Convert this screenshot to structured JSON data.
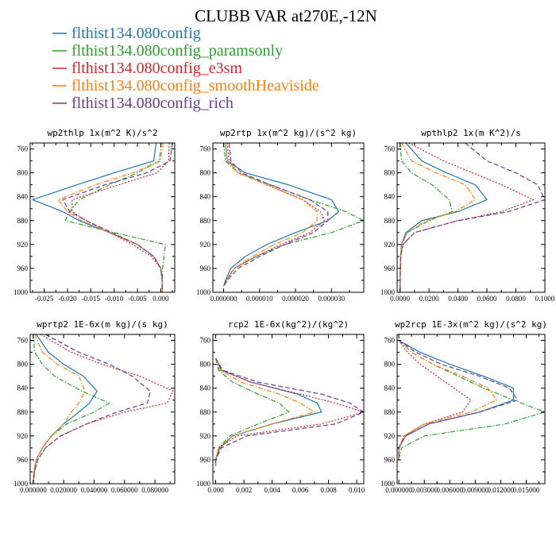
{
  "figure": {
    "title": "CLUBB VAR at270E,-12N"
  },
  "colors": {
    "flthist134.080config": "#1f77b4",
    "flthist134.080config_paramsonly": "#2ca02c",
    "flthist134.080config_e3sm": "#d62728",
    "flthist134.080config_smoothHeaviside": "#ff7f0e",
    "flthist134.080config_rich": "#6a3d9a"
  },
  "legend": [
    {
      "name": "flthist134.080config",
      "color": "#1f77b4",
      "dash": "solid"
    },
    {
      "name": "flthist134.080config_paramsonly",
      "color": "#2ca02c",
      "dash": "dashdot"
    },
    {
      "name": "flthist134.080config_e3sm",
      "color": "#d62728",
      "dash": "dotted"
    },
    {
      "name": "flthist134.080config_smoothHeaviside",
      "color": "#ff7f0e",
      "dash": "dashdot"
    },
    {
      "name": "flthist134.080config_rich",
      "color": "#6a3d9a",
      "dash": "dashed"
    }
  ],
  "chart_data": [
    {
      "type": "line",
      "title": "wp2thlp  1x(m^2 K)/s^2",
      "xlim": [
        -0.028,
        0.003
      ],
      "ylim": [
        1000,
        750
      ],
      "xticks": [
        -0.025,
        -0.02,
        -0.015,
        -0.01,
        -0.005,
        0.0
      ],
      "xtick_labels": [
        "-0.025",
        "-0.020",
        "-0.015",
        "-0.010",
        "-0.005",
        "0.000"
      ],
      "yticks": [
        760,
        800,
        840,
        880,
        920,
        960,
        1000
      ],
      "y": [
        750,
        780,
        800,
        820,
        845,
        865,
        880,
        900,
        920,
        940,
        960,
        980,
        1000
      ],
      "series": [
        {
          "name": "flthist134.080config",
          "values": [
            -0.001,
            -0.0015,
            -0.01,
            -0.018,
            -0.0275,
            -0.021,
            -0.0175,
            -0.011,
            -0.005,
            -0.0015,
            0.0,
            0.0003,
            0.0003
          ]
        },
        {
          "name": "flthist134.080config_paramsonly",
          "values": [
            0.0001,
            -0.0003,
            -0.005,
            -0.011,
            -0.0175,
            -0.0195,
            -0.0205,
            -0.01,
            0.001,
            0.0007,
            0.0004,
            0.0003,
            0.0003
          ]
        },
        {
          "name": "flthist134.080config_e3sm",
          "values": [
            0.0018,
            0.0017,
            -0.0008,
            -0.009,
            -0.019,
            -0.019,
            -0.016,
            -0.011,
            -0.006,
            -0.002,
            0.0,
            0.0003,
            0.0003
          ]
        },
        {
          "name": "flthist134.080config_smoothHeaviside",
          "values": [
            0.0005,
            -0.0001,
            -0.006,
            -0.014,
            -0.022,
            -0.02,
            -0.017,
            -0.011,
            -0.005,
            -0.0015,
            0.0,
            0.0003,
            0.0003
          ]
        },
        {
          "name": "flthist134.080config_rich",
          "values": [
            0.0025,
            0.002,
            -0.003,
            -0.012,
            -0.021,
            -0.0195,
            -0.016,
            -0.0105,
            -0.005,
            -0.0015,
            0.0,
            0.0003,
            0.0003
          ]
        }
      ]
    },
    {
      "type": "line",
      "title": "wp2rtp  1x(m^2 kg)/(s^2 kg)",
      "xlim": [
        -3e-06,
        3.9e-05
      ],
      "ylim": [
        1000,
        750
      ],
      "xticks": [
        0.0,
        1e-05,
        2e-05,
        3e-05
      ],
      "xtick_labels": [
        "0.000000",
        "0.000010",
        "0.000020",
        "0.000030"
      ],
      "yticks": [
        760,
        800,
        840,
        880,
        920,
        960,
        1000
      ],
      "y": [
        750,
        780,
        800,
        820,
        845,
        865,
        880,
        900,
        920,
        940,
        960,
        980,
        990
      ],
      "series": [
        {
          "name": "flthist134.080config",
          "values": [
            5e-07,
            1e-06,
            6e-06,
            1.8e-05,
            3e-05,
            3.2e-05,
            2.9e-05,
            2e-05,
            1.2e-05,
            6e-06,
            2e-06,
            5e-07,
            0.0
          ]
        },
        {
          "name": "flthist134.080config_paramsonly",
          "values": [
            0.0,
            5e-07,
            4e-06,
            1.3e-05,
            2.4e-05,
            3.4e-05,
            3.9e-05,
            3e-05,
            1.7e-05,
            9e-06,
            3e-06,
            5e-07,
            0.0
          ]
        },
        {
          "name": "flthist134.080config_e3sm",
          "values": [
            1e-06,
            1.5e-06,
            4e-06,
            1.2e-05,
            2.2e-05,
            2.7e-05,
            2.8e-05,
            2.4e-05,
            1.6e-05,
            9e-06,
            3e-06,
            8e-07,
            0.0
          ]
        },
        {
          "name": "flthist134.080config_smoothHeaviside",
          "values": [
            5e-07,
            1e-06,
            4e-06,
            1.2e-05,
            2.2e-05,
            2.6e-05,
            2.6e-05,
            2.2e-05,
            1.4e-05,
            8e-06,
            3e-06,
            8e-07,
            0.0
          ]
        },
        {
          "name": "flthist134.080config_rich",
          "values": [
            1.5e-06,
            2e-06,
            5e-06,
            1.3e-05,
            2.4e-05,
            2.9e-05,
            2.9e-05,
            2.5e-05,
            1.7e-05,
            1e-05,
            4e-06,
            1e-06,
            0.0
          ]
        }
      ]
    },
    {
      "type": "line",
      "title": "wpthlp2  1x(m K^2)/s",
      "xlim": [
        -0.002,
        0.1
      ],
      "ylim": [
        1000,
        750
      ],
      "xticks": [
        0.0,
        0.02,
        0.04,
        0.06,
        0.08,
        0.1
      ],
      "xtick_labels": [
        "0.0000",
        "0.0200",
        "0.0400",
        "0.0600",
        "0.0800",
        "0.1000"
      ],
      "yticks": [
        760,
        800,
        840,
        880,
        920,
        960,
        1000
      ],
      "y": [
        750,
        780,
        800,
        820,
        845,
        865,
        880,
        900,
        920,
        940,
        960,
        980,
        1000
      ],
      "series": [
        {
          "name": "flthist134.080config",
          "values": [
            0.004,
            0.015,
            0.032,
            0.052,
            0.06,
            0.04,
            0.015,
            0.004,
            0.001,
            0.0005,
            0.0002,
            0.0001,
            0.0
          ]
        },
        {
          "name": "flthist134.080config_paramsonly",
          "values": [
            0.0,
            0.001,
            0.008,
            0.022,
            0.034,
            0.036,
            0.02,
            0.005,
            0.001,
            0.0005,
            0.0002,
            0.0001,
            0.0
          ]
        },
        {
          "name": "flthist134.080config_e3sm",
          "values": [
            0.006,
            0.03,
            0.05,
            0.07,
            0.092,
            0.07,
            0.04,
            0.01,
            0.002,
            0.0005,
            0.0002,
            0.0001,
            0.0
          ]
        },
        {
          "name": "flthist134.080config_smoothHeaviside",
          "values": [
            0.001,
            0.008,
            0.025,
            0.045,
            0.052,
            0.038,
            0.018,
            0.005,
            0.001,
            0.0005,
            0.0002,
            0.0001,
            0.0
          ]
        },
        {
          "name": "flthist134.080config_rich",
          "values": [
            0.045,
            0.06,
            0.08,
            0.095,
            0.1,
            0.075,
            0.04,
            0.01,
            0.002,
            0.0005,
            0.0002,
            0.0001,
            0.0
          ]
        }
      ]
    },
    {
      "type": "line",
      "title": "wprtp2  1E-6x(m kg)/(s kg)",
      "xlim": [
        -0.002,
        0.093
      ],
      "ylim": [
        1000,
        750
      ],
      "xticks": [
        0.0,
        0.02,
        0.04,
        0.06,
        0.08
      ],
      "xtick_labels": [
        "0.000000",
        "0.020000",
        "0.040000",
        "0.060000",
        "0.080000"
      ],
      "yticks": [
        760,
        800,
        840,
        880,
        920,
        960,
        1000
      ],
      "y": [
        750,
        780,
        800,
        820,
        845,
        865,
        880,
        900,
        920,
        940,
        960,
        980,
        1000
      ],
      "series": [
        {
          "name": "flthist134.080config",
          "values": [
            0.002,
            0.01,
            0.02,
            0.033,
            0.042,
            0.037,
            0.03,
            0.02,
            0.012,
            0.006,
            0.002,
            0.0005,
            0.0
          ]
        },
        {
          "name": "flthist134.080config_paramsonly",
          "values": [
            0.0,
            0.001,
            0.006,
            0.014,
            0.032,
            0.05,
            0.04,
            0.022,
            0.012,
            0.006,
            0.002,
            0.0005,
            0.0
          ]
        },
        {
          "name": "flthist134.080config_e3sm",
          "values": [
            0.005,
            0.025,
            0.045,
            0.07,
            0.092,
            0.088,
            0.06,
            0.035,
            0.018,
            0.008,
            0.003,
            0.0008,
            0.0
          ]
        },
        {
          "name": "flthist134.080config_smoothHeaviside",
          "values": [
            0.001,
            0.006,
            0.016,
            0.03,
            0.034,
            0.03,
            0.025,
            0.02,
            0.012,
            0.006,
            0.002,
            0.0005,
            0.0
          ]
        },
        {
          "name": "flthist134.080config_rich",
          "values": [
            0.008,
            0.03,
            0.05,
            0.065,
            0.077,
            0.075,
            0.055,
            0.035,
            0.018,
            0.008,
            0.003,
            0.0008,
            0.0
          ]
        }
      ]
    },
    {
      "type": "line",
      "title": "rcp2  1E-6x(kg^2)/(kg^2)",
      "xlim": [
        -0.0002,
        0.0105
      ],
      "ylim": [
        1000,
        750
      ],
      "xticks": [
        0.0,
        0.002,
        0.004,
        0.006,
        0.008,
        0.01
      ],
      "xtick_labels": [
        "0.000",
        "0.002",
        "0.004",
        "0.006",
        "0.008",
        "0.010"
      ],
      "yticks": [
        760,
        800,
        840,
        880,
        920,
        960,
        1000
      ],
      "y": [
        790,
        810,
        830,
        850,
        865,
        880,
        900,
        920,
        940,
        960,
        970
      ],
      "series": [
        {
          "name": "flthist134.080config",
          "values": [
            0.0,
            0.0004,
            0.0025,
            0.0058,
            0.0072,
            0.0075,
            0.004,
            0.0012,
            0.0003,
            0.0,
            0.0
          ]
        },
        {
          "name": "flthist134.080config_paramsonly",
          "values": [
            0.0,
            0.0002,
            0.0012,
            0.003,
            0.0045,
            0.0052,
            0.003,
            0.001,
            0.0002,
            0.0,
            0.0
          ]
        },
        {
          "name": "flthist134.080config_e3sm",
          "values": [
            0.0,
            0.0004,
            0.0025,
            0.006,
            0.0085,
            0.0105,
            0.0075,
            0.0015,
            0.0002,
            0.0,
            0.0
          ]
        },
        {
          "name": "flthist134.080config_smoothHeaviside",
          "values": [
            0.0,
            0.0003,
            0.0018,
            0.0045,
            0.006,
            0.007,
            0.004,
            0.0012,
            0.0002,
            0.0,
            0.0
          ]
        },
        {
          "name": "flthist134.080config_rich",
          "values": [
            0.0,
            0.0005,
            0.003,
            0.0075,
            0.0095,
            0.0105,
            0.0085,
            0.0022,
            0.0004,
            0.0,
            0.0
          ]
        }
      ]
    },
    {
      "type": "line",
      "title": "wp2rcp  1E-3x(m^2 kg)/(s^2 kg)",
      "xlim": [
        -0.0002,
        0.0172
      ],
      "ylim": [
        1000,
        750
      ],
      "xticks": [
        0.0,
        0.003,
        0.006,
        0.009,
        0.012,
        0.015
      ],
      "xtick_labels": [
        "0.000000",
        "0.003000",
        "0.006000",
        "0.009000",
        "0.012000",
        "0.015000"
      ],
      "yticks": [
        760,
        800,
        840,
        880,
        920,
        960,
        1000
      ],
      "y": [
        760,
        780,
        800,
        820,
        840,
        860,
        880,
        900,
        920,
        940,
        960
      ],
      "series": [
        {
          "name": "flthist134.080config",
          "values": [
            0.0,
            0.0025,
            0.006,
            0.01,
            0.0135,
            0.0135,
            0.0095,
            0.0035,
            0.0008,
            0.0,
            0.0
          ]
        },
        {
          "name": "flthist134.080config_paramsonly",
          "values": [
            0.0,
            0.0015,
            0.004,
            0.007,
            0.01,
            0.0135,
            0.0172,
            0.0125,
            0.003,
            0.0003,
            0.0
          ]
        },
        {
          "name": "flthist134.080config_e3sm",
          "values": [
            0.0,
            0.001,
            0.0025,
            0.0045,
            0.0065,
            0.0085,
            0.0075,
            0.003,
            0.0006,
            0.0,
            0.0
          ]
        },
        {
          "name": "flthist134.080config_smoothHeaviside",
          "values": [
            0.0,
            0.0015,
            0.004,
            0.0075,
            0.0105,
            0.0115,
            0.0085,
            0.003,
            0.0006,
            0.0,
            0.0
          ]
        },
        {
          "name": "flthist134.080config_rich",
          "values": [
            0.0,
            0.002,
            0.005,
            0.0095,
            0.013,
            0.014,
            0.0095,
            0.0035,
            0.0008,
            0.0,
            0.0
          ]
        }
      ]
    }
  ]
}
